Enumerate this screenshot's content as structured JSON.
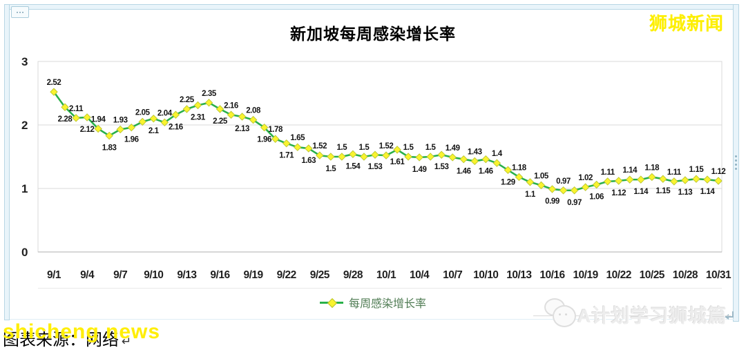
{
  "chart_data": {
    "type": "line",
    "title": "新加坡每周感染增长率",
    "xlabel": "",
    "ylabel": "",
    "ylim": [
      0,
      3
    ],
    "y_ticks": [
      0,
      1,
      2,
      3
    ],
    "grid": true,
    "legend_position": "bottom",
    "line_color": "#29b04a",
    "marker_shape": "diamond",
    "marker_fill": "#f9f32f",
    "marker_stroke": "#b9c531",
    "label_rule": "odd-numbered days labeled above line, even-numbered days below",
    "x": [
      "9/1",
      "9/2",
      "9/3",
      "9/4",
      "9/5",
      "9/6",
      "9/7",
      "9/8",
      "9/9",
      "9/10",
      "9/11",
      "9/12",
      "9/13",
      "9/14",
      "9/15",
      "9/16",
      "9/17",
      "9/18",
      "9/19",
      "9/20",
      "9/21",
      "9/22",
      "9/23",
      "9/24",
      "9/25",
      "9/26",
      "9/27",
      "9/28",
      "9/29",
      "9/30",
      "10/1",
      "10/2",
      "10/3",
      "10/4",
      "10/5",
      "10/6",
      "10/7",
      "10/8",
      "10/9",
      "10/10",
      "10/11",
      "10/12",
      "10/13",
      "10/14",
      "10/15",
      "10/16",
      "10/17",
      "10/18",
      "10/19",
      "10/20",
      "10/21",
      "10/22",
      "10/23",
      "10/24",
      "10/25",
      "10/26",
      "10/27",
      "10/28",
      "10/29",
      "10/30",
      "10/31"
    ],
    "x_tick_labels": [
      "9/1",
      "9/4",
      "9/7",
      "9/10",
      "9/13",
      "9/16",
      "9/19",
      "9/22",
      "9/25",
      "9/28",
      "10/1",
      "10/4",
      "10/7",
      "10/10",
      "10/13",
      "10/16",
      "10/19",
      "10/22",
      "10/25",
      "10/28",
      "10/31"
    ],
    "series": [
      {
        "name": "每周感染增长率",
        "values": [
          2.52,
          2.28,
          2.11,
          2.12,
          1.94,
          1.83,
          1.93,
          1.96,
          2.05,
          2.1,
          2.04,
          2.16,
          2.25,
          2.31,
          2.35,
          2.25,
          2.16,
          2.13,
          2.08,
          1.96,
          1.78,
          1.71,
          1.65,
          1.63,
          1.52,
          1.5,
          1.5,
          1.54,
          1.5,
          1.53,
          1.52,
          1.61,
          1.5,
          1.49,
          1.5,
          1.53,
          1.49,
          1.46,
          1.43,
          1.46,
          1.4,
          1.29,
          1.18,
          1.1,
          1.05,
          0.99,
          0.97,
          0.97,
          1.02,
          1.06,
          1.11,
          1.12,
          1.14,
          1.14,
          1.18,
          1.15,
          1.11,
          1.13,
          1.15,
          1.14,
          1.12
        ]
      }
    ]
  },
  "watermarks": {
    "top_right": "狮城新闻",
    "bottom_left": "shicheng news",
    "bottom_right": "A计划学习狮城篇"
  },
  "caption": {
    "text": "图表来源：网络",
    "linebreak_mark": "↵"
  },
  "colors": {
    "grid": "#d9d9d9",
    "axis": "#bfbfbf",
    "tick_text": "#1f1f1f",
    "data_label": "#141414",
    "frame_blue": "#e9f4fa"
  }
}
